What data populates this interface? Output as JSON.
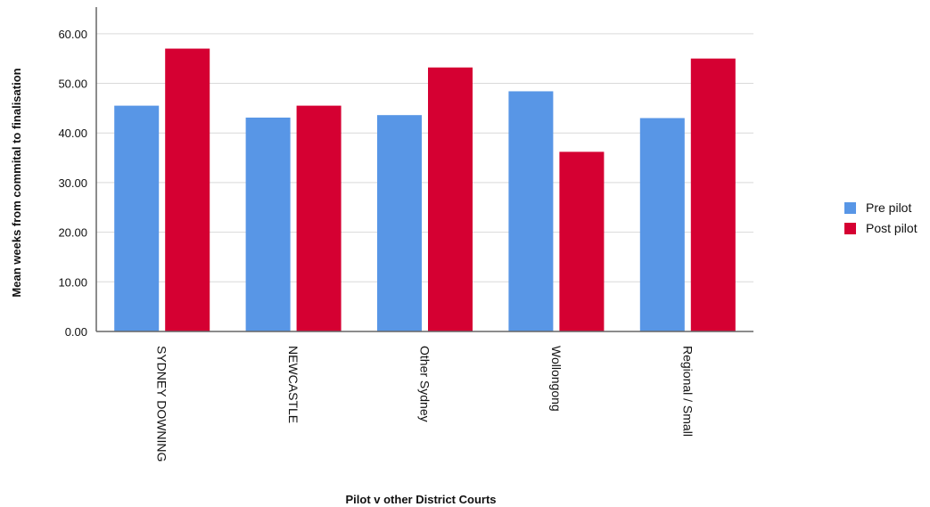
{
  "chart_data": {
    "type": "bar",
    "title": "",
    "xlabel": "Pilot v other District Courts",
    "ylabel": "Mean weeks from commital to finalisation",
    "categories": [
      "SYDNEY DOWNING",
      "NEWCASTLE",
      "Other  Sydney",
      "Wollongong",
      "Regional / Small"
    ],
    "series": [
      {
        "name": "Pre pilot",
        "color": "#5896e6",
        "values": [
          45.5,
          43.1,
          43.6,
          48.4,
          43.0
        ]
      },
      {
        "name": "Post pilot",
        "color": "#d50032",
        "values": [
          57.0,
          45.5,
          53.2,
          36.2,
          55.0
        ]
      }
    ],
    "ylim": [
      0,
      65
    ],
    "yticks": [
      0,
      10,
      20,
      30,
      40,
      50,
      60
    ],
    "ytick_labels": [
      "0.00",
      "10.00",
      "20.00",
      "30.00",
      "40.00",
      "50.00",
      "60.00"
    ],
    "grid": true,
    "legend": "right"
  }
}
